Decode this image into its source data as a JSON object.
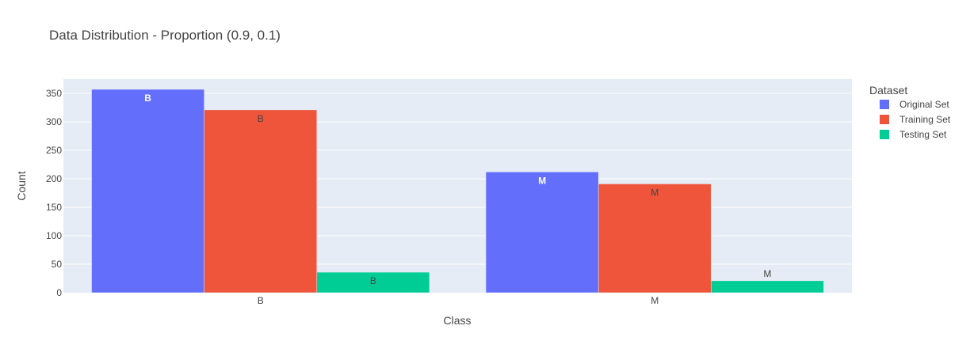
{
  "chart_data": {
    "type": "bar",
    "title": "Data Distribution - Proportion (0.9, 0.1)",
    "xlabel": "Class",
    "ylabel": "Count",
    "categories": [
      "B",
      "M"
    ],
    "ylim": [
      0,
      375
    ],
    "yticks": [
      0,
      50,
      100,
      150,
      200,
      250,
      300,
      350
    ],
    "grid": true,
    "legend": {
      "title": "Dataset",
      "position": "right"
    },
    "series": [
      {
        "name": "Original Set",
        "values": [
          357,
          212
        ],
        "labels": [
          "B",
          "M"
        ],
        "color": "#636efa",
        "label_color": "#ffffff"
      },
      {
        "name": "Training Set",
        "values": [
          321,
          191
        ],
        "labels": [
          "B",
          "M"
        ],
        "color": "#ef553b",
        "label_color": "#444444"
      },
      {
        "name": "Testing Set",
        "values": [
          36,
          21
        ],
        "labels": [
          "B",
          "M"
        ],
        "color": "#00cc96",
        "label_color": "#444444"
      }
    ],
    "colors": {
      "plot_bg": "#e5ecf6",
      "grid": "#ffffff",
      "text": "#444444"
    }
  }
}
